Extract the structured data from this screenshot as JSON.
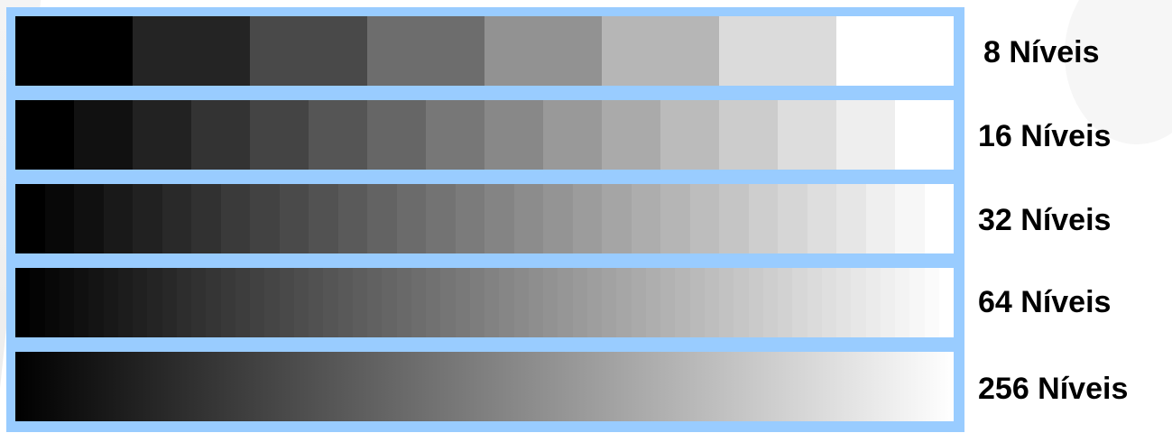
{
  "rows": [
    {
      "label": "8 Níveis",
      "levels": 8
    },
    {
      "label": "16 Níveis",
      "levels": 16
    },
    {
      "label": "32 Níveis",
      "levels": 32
    },
    {
      "label": "64 Níveis",
      "levels": 64
    },
    {
      "label": "256 Níveis",
      "levels": 256
    }
  ],
  "colors": {
    "frame": "#99ccff",
    "background": "#ffffff",
    "text": "#000000"
  }
}
